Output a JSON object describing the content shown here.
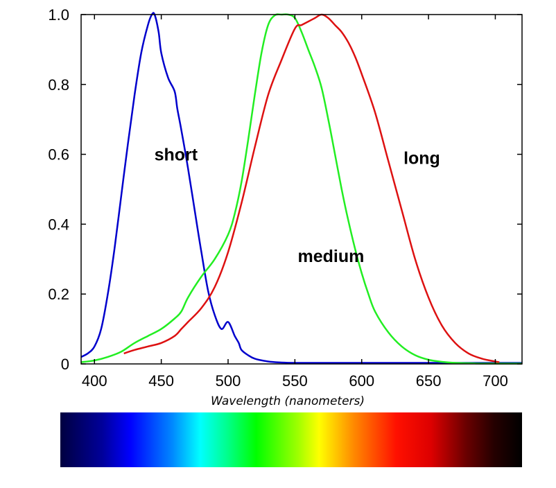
{
  "chart_data": {
    "type": "line",
    "title": "",
    "xlabel": "Wavelength (nanometers)",
    "ylabel": "",
    "xlim": [
      390,
      720
    ],
    "ylim": [
      0,
      1.0
    ],
    "xticks": [
      400,
      450,
      500,
      550,
      600,
      650,
      700
    ],
    "yticks": [
      0,
      0.2,
      0.4,
      0.6,
      0.8,
      1.0
    ],
    "ytick_labels": [
      "0",
      "0.2",
      "0.4",
      "0.6",
      "0.8",
      "1.0"
    ],
    "grid": false,
    "colors": {
      "short": "#0000cc",
      "medium": "#22ee22",
      "long": "#dd1111"
    },
    "series": [
      {
        "name": "short",
        "color": "#0000cc",
        "x": [
          390,
          395,
          400,
          405,
          410,
          415,
          420,
          425,
          430,
          435,
          440,
          443,
          445,
          448,
          450,
          455,
          460,
          462,
          465,
          470,
          475,
          480,
          485,
          490,
          495,
          500,
          505,
          508,
          510,
          515,
          520,
          530,
          540,
          550,
          570,
          600,
          650,
          700,
          720
        ],
        "y": [
          0.02,
          0.03,
          0.05,
          0.1,
          0.2,
          0.33,
          0.48,
          0.63,
          0.77,
          0.89,
          0.97,
          1.0,
          1.0,
          0.95,
          0.89,
          0.82,
          0.78,
          0.73,
          0.67,
          0.56,
          0.44,
          0.32,
          0.21,
          0.14,
          0.1,
          0.12,
          0.08,
          0.06,
          0.04,
          0.025,
          0.015,
          0.007,
          0.004,
          0.003,
          0.003,
          0.003,
          0.003,
          0.003,
          0.003
        ]
      },
      {
        "name": "medium",
        "color": "#22ee22",
        "x": [
          390,
          400,
          410,
          420,
          430,
          440,
          450,
          460,
          465,
          470,
          480,
          490,
          500,
          505,
          510,
          515,
          520,
          525,
          530,
          535,
          540,
          545,
          550,
          555,
          560,
          565,
          570,
          575,
          580,
          585,
          590,
          595,
          600,
          605,
          610,
          620,
          630,
          640,
          650,
          660,
          670,
          680,
          690,
          700,
          710,
          720
        ],
        "y": [
          0.005,
          0.01,
          0.02,
          0.035,
          0.06,
          0.08,
          0.1,
          0.13,
          0.15,
          0.19,
          0.25,
          0.3,
          0.37,
          0.43,
          0.52,
          0.64,
          0.77,
          0.89,
          0.97,
          0.998,
          1.0,
          1.0,
          0.99,
          0.95,
          0.9,
          0.85,
          0.79,
          0.7,
          0.6,
          0.5,
          0.41,
          0.33,
          0.26,
          0.2,
          0.15,
          0.09,
          0.05,
          0.025,
          0.012,
          0.006,
          0.003,
          0.002,
          0.001,
          0.001,
          0.001,
          0.001
        ]
      },
      {
        "name": "long",
        "color": "#dd1111",
        "x": [
          422,
          430,
          440,
          450,
          460,
          465,
          470,
          480,
          490,
          500,
          510,
          520,
          530,
          540,
          550,
          555,
          560,
          565,
          570,
          575,
          580,
          585,
          590,
          595,
          600,
          610,
          620,
          630,
          640,
          650,
          660,
          670,
          680,
          690,
          700,
          703
        ],
        "y": [
          0.03,
          0.04,
          0.05,
          0.06,
          0.08,
          0.1,
          0.12,
          0.16,
          0.22,
          0.32,
          0.46,
          0.62,
          0.77,
          0.87,
          0.96,
          0.97,
          0.98,
          0.99,
          1.0,
          0.99,
          0.97,
          0.95,
          0.92,
          0.88,
          0.83,
          0.72,
          0.58,
          0.44,
          0.3,
          0.19,
          0.11,
          0.06,
          0.03,
          0.015,
          0.007,
          0.005
        ]
      }
    ],
    "annotations": [
      {
        "text": "short",
        "x": 461,
        "y": 0.6
      },
      {
        "text": "medium",
        "x": 577,
        "y": 0.31
      },
      {
        "text": "long",
        "x": 645,
        "y": 0.59
      }
    ],
    "color_bar": {
      "start": 390,
      "end": 720,
      "stops": [
        {
          "wl": 390,
          "color": "#000040"
        },
        {
          "wl": 420,
          "color": "#00009a"
        },
        {
          "wl": 440,
          "color": "#0000ff"
        },
        {
          "wl": 470,
          "color": "#0088ff"
        },
        {
          "wl": 490,
          "color": "#00ffff"
        },
        {
          "wl": 510,
          "color": "#00ff88"
        },
        {
          "wl": 530,
          "color": "#00ff00"
        },
        {
          "wl": 560,
          "color": "#a0ff00"
        },
        {
          "wl": 575,
          "color": "#ffff00"
        },
        {
          "wl": 600,
          "color": "#ff8800"
        },
        {
          "wl": 630,
          "color": "#ff1000"
        },
        {
          "wl": 655,
          "color": "#dd0000"
        },
        {
          "wl": 680,
          "color": "#6a0000"
        },
        {
          "wl": 700,
          "color": "#250000"
        },
        {
          "wl": 720,
          "color": "#000000"
        }
      ]
    }
  }
}
